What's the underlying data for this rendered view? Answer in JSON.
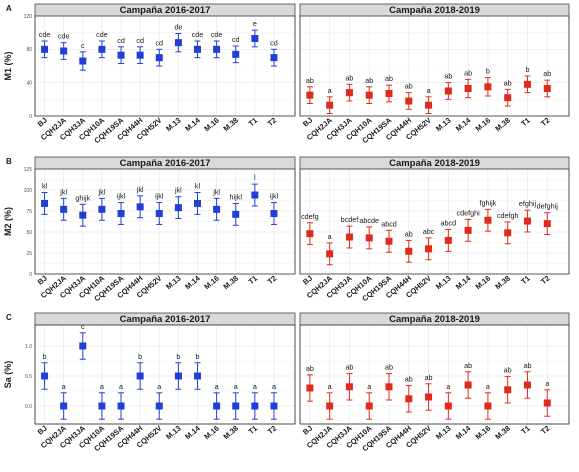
{
  "colors": {
    "campaign_2016": "#1f3fd6",
    "campaign_2018": "#e02b1c"
  },
  "chart_data": [
    {
      "type": "scatter",
      "panel_label": "A",
      "ylabel": "M1 (%)",
      "ylim": [
        0,
        120
      ],
      "yticks": [
        "0",
        "40",
        "80",
        "120"
      ],
      "categories": [
        "BJ",
        "CQH2JA",
        "CQH3JA",
        "CQH10A",
        "CQH19SA",
        "CQH44H",
        "CQH52V",
        "M.13",
        "M.14",
        "M.16",
        "M.38",
        "T1",
        "T2"
      ],
      "facets": [
        {
          "title": "Campaña 2016-2017",
          "values": [
            80,
            78,
            66,
            80,
            73,
            73,
            70,
            88,
            80,
            80,
            74,
            93,
            70
          ],
          "errors": [
            10,
            10,
            11,
            10,
            10,
            10,
            10,
            11,
            10,
            10,
            10,
            10,
            10
          ],
          "letters": [
            "cde",
            "cde",
            "c",
            "cde",
            "cd",
            "cd",
            "cd",
            "de",
            "cde",
            "cde",
            "cd",
            "e",
            "cd"
          ]
        },
        {
          "title": "Campaña 2018-2019",
          "values": [
            25,
            13,
            28,
            25,
            27,
            18,
            13,
            30,
            33,
            35,
            22,
            38,
            33
          ],
          "errors": [
            10,
            10,
            10,
            10,
            10,
            10,
            10,
            10,
            11,
            11,
            10,
            10,
            10
          ],
          "letters": [
            "ab",
            "a",
            "ab",
            "ab",
            "ab",
            "ab",
            "a",
            "ab",
            "ab",
            "b",
            "ab",
            "b",
            "ab"
          ]
        }
      ]
    },
    {
      "type": "scatter",
      "panel_label": "B",
      "ylabel": "M2 (%)",
      "ylim": [
        0,
        125
      ],
      "yticks": [
        "0",
        "25",
        "50",
        "75",
        "100",
        "125"
      ],
      "categories": [
        "BJ",
        "CQH2JA",
        "CQH3JA",
        "CQH10A",
        "CQH19SA",
        "CQH44H",
        "CQH52V",
        "M.13",
        "M.14",
        "M.16",
        "M.38",
        "T1",
        "T2"
      ],
      "facets": [
        {
          "title": "Campaña 2016-2017",
          "values": [
            84,
            77,
            70,
            77,
            72,
            80,
            72,
            79,
            84,
            77,
            71,
            94,
            72
          ],
          "errors": [
            13,
            13,
            13,
            13,
            13,
            13,
            13,
            13,
            13,
            13,
            13,
            13,
            13
          ],
          "letters": [
            "kl",
            "jkl",
            "ghijk",
            "jkl",
            "ijkl",
            "jkl",
            "ijkl",
            "jkl",
            "kl",
            "jkl",
            "hijkl",
            "l",
            "ijkl"
          ]
        },
        {
          "title": "Campaña 2018-2019",
          "values": [
            48,
            24,
            44,
            43,
            39,
            27,
            30,
            40,
            52,
            64,
            49,
            63,
            60
          ],
          "errors": [
            13,
            13,
            13,
            13,
            13,
            13,
            13,
            13,
            13,
            13,
            13,
            13,
            13
          ],
          "letters": [
            "cdefg",
            "a",
            "bcdef",
            "abcde",
            "abcd",
            "ab",
            "abc",
            "abcd",
            "cdefghi",
            "fghijk",
            "cdefgh",
            "efghij",
            "defghij"
          ]
        }
      ]
    },
    {
      "type": "scatter",
      "panel_label": "C",
      "ylabel": "Sa (%)",
      "ylim": [
        -0.3,
        1.35
      ],
      "yticks": [
        "0.0",
        "0.5",
        "1.0"
      ],
      "categories": [
        "BJ",
        "CQH2JA",
        "CQH3JA",
        "CQH10A",
        "CQH19SA",
        "CQH44H",
        "CQH52V",
        "M.13",
        "M.14",
        "M.16",
        "M.38",
        "T1",
        "T2"
      ],
      "facets": [
        {
          "title": "Campaña 2016-2017",
          "values": [
            0.5,
            0.0,
            1.0,
            0.0,
            0.0,
            0.5,
            0.0,
            0.5,
            0.5,
            0.0,
            0.0,
            0.0,
            0.0
          ],
          "errors": [
            0.22,
            0.22,
            0.22,
            0.22,
            0.22,
            0.22,
            0.22,
            0.22,
            0.22,
            0.22,
            0.22,
            0.22,
            0.22
          ],
          "letters": [
            "b",
            "a",
            "c",
            "a",
            "a",
            "b",
            "a",
            "b",
            "b",
            "a",
            "a",
            "a",
            "a"
          ]
        },
        {
          "title": "Campaña 2018-2019",
          "values": [
            0.3,
            0.0,
            0.32,
            0.0,
            0.32,
            0.12,
            0.15,
            0.0,
            0.35,
            0.0,
            0.27,
            0.35,
            0.05
          ],
          "errors": [
            0.22,
            0.22,
            0.22,
            0.22,
            0.22,
            0.22,
            0.22,
            0.22,
            0.22,
            0.22,
            0.22,
            0.22,
            0.22
          ],
          "letters": [
            "ab",
            "a",
            "ab",
            "a",
            "ab",
            "ab",
            "ab",
            "a",
            "ab",
            "a",
            "ab",
            "ab",
            "a"
          ]
        }
      ]
    }
  ]
}
